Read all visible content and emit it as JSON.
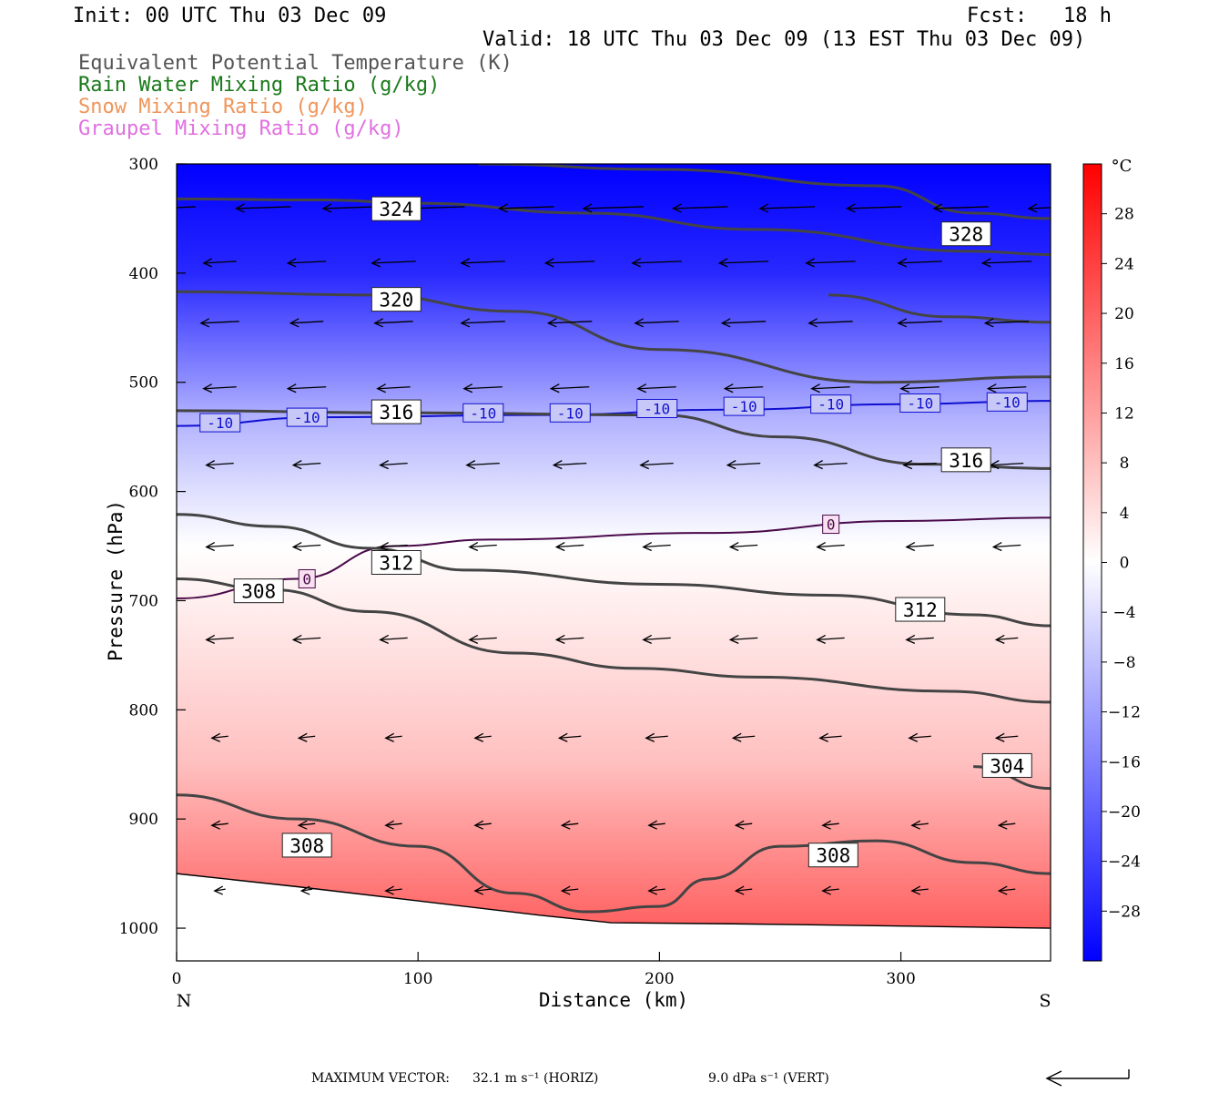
{
  "header": {
    "init": "Init: 00 UTC Thu 03 Dec 09",
    "fcst": "Fcst:   18 h",
    "valid": "Valid: 18 UTC Thu 03 Dec 09 (13 EST Thu 03 Dec 09)",
    "fields": [
      {
        "label": "Equivalent Potential Temperature (K)",
        "color": "#555555"
      },
      {
        "label": "Rain Water Mixing Ratio (g/kg)",
        "color": "#1a7a1a"
      },
      {
        "label": "Snow Mixing Ratio (g/kg)",
        "color": "#f0955a"
      },
      {
        "label": "Graupel Mixing Ratio (g/kg)",
        "color": "#e070e0"
      }
    ]
  },
  "footer": {
    "max_vector_label": "MAXIMUM VECTOR:",
    "horiz": "32.1 m s⁻¹ (HORIZ)",
    "vert": "9.0 dPa s⁻¹ (VERT)"
  },
  "chart_data": {
    "type": "cross-section",
    "xlabel": "Distance (km)",
    "ylabel": "Pressure (hPa)",
    "xlim": [
      0,
      362
    ],
    "ylim": [
      1030,
      300
    ],
    "x_ticks": [
      0,
      100,
      200,
      300
    ],
    "y_ticks": [
      300,
      400,
      500,
      600,
      700,
      800,
      900,
      1000
    ],
    "left_endpoint": "N",
    "right_endpoint": "S",
    "colorbar": {
      "unit": "°C",
      "ticks": [
        28,
        24,
        20,
        16,
        12,
        8,
        4,
        0,
        -4,
        -8,
        -12,
        -16,
        -20,
        -24,
        -28
      ],
      "range": [
        -32,
        32
      ]
    },
    "temperature_fill_bands": [
      {
        "pressure": 300,
        "temp": -32
      },
      {
        "pressure": 400,
        "temp": -27
      },
      {
        "pressure": 500,
        "temp": -14
      },
      {
        "pressure": 530,
        "temp": -10
      },
      {
        "pressure": 600,
        "temp": -4
      },
      {
        "pressure": 650,
        "temp": 0
      },
      {
        "pressure": 750,
        "temp": 4
      },
      {
        "pressure": 850,
        "temp": 8
      },
      {
        "pressure": 900,
        "temp": 12
      },
      {
        "pressure": 950,
        "temp": 16
      },
      {
        "pressure": 1000,
        "temp": 20
      }
    ],
    "theta_e_contours": [
      {
        "label": "324",
        "points": [
          [
            0,
            332
          ],
          [
            60,
            333
          ],
          [
            100,
            336
          ],
          [
            170,
            345
          ],
          [
            240,
            360
          ],
          [
            330,
            380
          ],
          [
            362,
            383
          ]
        ]
      },
      {
        "label": "328",
        "points": [
          [
            125,
            300
          ],
          [
            200,
            305
          ],
          [
            290,
            320
          ],
          [
            330,
            345
          ],
          [
            362,
            350
          ]
        ]
      },
      {
        "label": "320",
        "points": [
          [
            0,
            417
          ],
          [
            80,
            420
          ],
          [
            140,
            435
          ],
          [
            200,
            470
          ],
          [
            290,
            500
          ],
          [
            362,
            495
          ]
        ]
      },
      {
        "label": "320",
        "points": [
          [
            270,
            420
          ],
          [
            320,
            440
          ],
          [
            362,
            445
          ]
        ]
      },
      {
        "label": "316",
        "points": [
          [
            0,
            526
          ],
          [
            100,
            528
          ],
          [
            200,
            530
          ],
          [
            250,
            550
          ],
          [
            310,
            575
          ],
          [
            362,
            579
          ]
        ]
      },
      {
        "label": "312",
        "points": [
          [
            0,
            621
          ],
          [
            40,
            632
          ],
          [
            80,
            652
          ],
          [
            120,
            672
          ],
          [
            200,
            685
          ],
          [
            270,
            695
          ],
          [
            330,
            713
          ],
          [
            362,
            723
          ]
        ]
      },
      {
        "label": "308",
        "points": [
          [
            0,
            680
          ],
          [
            40,
            690
          ],
          [
            80,
            710
          ],
          [
            140,
            748
          ],
          [
            190,
            762
          ],
          [
            240,
            770
          ],
          [
            320,
            783
          ],
          [
            362,
            793
          ]
        ]
      },
      {
        "label": "304",
        "points": [
          [
            330,
            852
          ],
          [
            362,
            872
          ]
        ]
      },
      {
        "label": "308",
        "points": [
          [
            0,
            878
          ],
          [
            50,
            900
          ],
          [
            100,
            925
          ],
          [
            140,
            968
          ],
          [
            170,
            985
          ],
          [
            200,
            980
          ],
          [
            220,
            955
          ],
          [
            250,
            925
          ],
          [
            290,
            920
          ],
          [
            330,
            940
          ],
          [
            362,
            950
          ]
        ]
      }
    ],
    "isotherms": [
      {
        "value": -10,
        "color": "#1010d0",
        "points": [
          [
            0,
            540
          ],
          [
            60,
            532
          ],
          [
            150,
            530
          ],
          [
            230,
            525
          ],
          [
            300,
            520
          ],
          [
            362,
            517
          ]
        ]
      },
      {
        "value": 0,
        "color": "#4a0a4a",
        "points": [
          [
            0,
            698
          ],
          [
            50,
            680
          ],
          [
            90,
            650
          ],
          [
            130,
            644
          ],
          [
            220,
            638
          ],
          [
            300,
            627
          ],
          [
            362,
            624
          ]
        ]
      }
    ],
    "isotherm_labels": [
      {
        "value": "-10",
        "x": 18,
        "p": 537
      },
      {
        "value": "-10",
        "x": 54,
        "p": 532
      },
      {
        "value": "-10",
        "x": 90,
        "p": 528
      },
      {
        "value": "-10",
        "x": 127,
        "p": 528
      },
      {
        "value": "-10",
        "x": 163,
        "p": 528
      },
      {
        "value": "-10",
        "x": 199,
        "p": 524
      },
      {
        "value": "-10",
        "x": 235,
        "p": 522
      },
      {
        "value": "-10",
        "x": 271,
        "p": 520
      },
      {
        "value": "-10",
        "x": 308,
        "p": 519
      },
      {
        "value": "-10",
        "x": 344,
        "p": 518
      },
      {
        "value": "0",
        "x": 54,
        "p": 680
      },
      {
        "value": "0",
        "x": 271,
        "p": 630
      }
    ],
    "contour_labels": [
      {
        "text": "324",
        "x": 91,
        "p": 341
      },
      {
        "text": "328",
        "x": 327,
        "p": 364
      },
      {
        "text": "320",
        "x": 91,
        "p": 424
      },
      {
        "text": "316",
        "x": 91,
        "p": 527
      },
      {
        "text": "316",
        "x": 327,
        "p": 571
      },
      {
        "text": "312",
        "x": 91,
        "p": 665
      },
      {
        "text": "312",
        "x": 308,
        "p": 708
      },
      {
        "text": "308",
        "x": 34,
        "p": 691
      },
      {
        "text": "304",
        "x": 344,
        "p": 851
      },
      {
        "text": "308",
        "x": 54,
        "p": 924
      },
      {
        "text": "308",
        "x": 272,
        "p": 933
      }
    ],
    "wind_vector_rows": [
      {
        "p": 340,
        "x": [
          0,
          36,
          72,
          108,
          145,
          181,
          217,
          253,
          289,
          325,
          362
        ],
        "len": [
          0.7,
          1.0,
          1.0,
          1.0,
          1.0,
          1.1,
          1.0,
          1.0,
          1.0,
          1.0,
          0.8
        ]
      },
      {
        "p": 390,
        "x": [
          18,
          54,
          90,
          127,
          163,
          199,
          235,
          271,
          308,
          344
        ],
        "len": [
          0.6,
          0.7,
          0.8,
          0.8,
          0.9,
          0.9,
          0.9,
          0.9,
          0.8,
          0.9
        ]
      },
      {
        "p": 445,
        "x": [
          18,
          54,
          90,
          127,
          163,
          199,
          235,
          271,
          308,
          344
        ],
        "len": [
          0.7,
          0.6,
          0.7,
          0.8,
          0.8,
          0.8,
          0.8,
          0.8,
          0.8,
          0.8
        ]
      },
      {
        "p": 505,
        "x": [
          18,
          54,
          90,
          127,
          163,
          199,
          235,
          271,
          308,
          344
        ],
        "len": [
          0.6,
          0.7,
          0.6,
          0.7,
          0.7,
          0.7,
          0.7,
          0.7,
          0.7,
          0.7
        ]
      },
      {
        "p": 575,
        "x": [
          18,
          54,
          90,
          127,
          163,
          199,
          235,
          271,
          308,
          344
        ],
        "len": [
          0.5,
          0.5,
          0.5,
          0.6,
          0.6,
          0.6,
          0.6,
          0.6,
          0.6,
          0.6
        ]
      },
      {
        "p": 650,
        "x": [
          18,
          54,
          90,
          127,
          163,
          199,
          235,
          271,
          308,
          344
        ],
        "len": [
          0.5,
          0.5,
          0.5,
          0.5,
          0.5,
          0.5,
          0.5,
          0.5,
          0.5,
          0.5
        ]
      },
      {
        "p": 735,
        "x": [
          18,
          54,
          90,
          127,
          163,
          199,
          235,
          271,
          308,
          344
        ],
        "len": [
          0.5,
          0.5,
          0.5,
          0.5,
          0.5,
          0.5,
          0.5,
          0.5,
          0.5,
          0.4
        ]
      },
      {
        "p": 825,
        "x": [
          18,
          54,
          90,
          127,
          163,
          199,
          235,
          271,
          308,
          344
        ],
        "len": [
          0.3,
          0.3,
          0.3,
          0.3,
          0.4,
          0.4,
          0.4,
          0.4,
          0.4,
          0.4
        ]
      },
      {
        "p": 905,
        "x": [
          18,
          54,
          90,
          127,
          163,
          199,
          235,
          271,
          308,
          344
        ],
        "len": [
          0.3,
          0.3,
          0.3,
          0.3,
          0.3,
          0.3,
          0.3,
          0.3,
          0.3,
          0.3
        ]
      },
      {
        "p": 965,
        "x": [
          18,
          54,
          90,
          127,
          163,
          199,
          235,
          271,
          308,
          344
        ],
        "len": [
          0.2,
          0.2,
          0.3,
          0.3,
          0.3,
          0.3,
          0.3,
          0.3,
          0.3,
          0.3
        ]
      }
    ],
    "terrain_surface": [
      [
        0,
        950
      ],
      [
        50,
        962
      ],
      [
        100,
        975
      ],
      [
        150,
        988
      ],
      [
        180,
        995
      ],
      [
        230,
        996
      ],
      [
        300,
        998
      ],
      [
        362,
        1000
      ]
    ]
  }
}
